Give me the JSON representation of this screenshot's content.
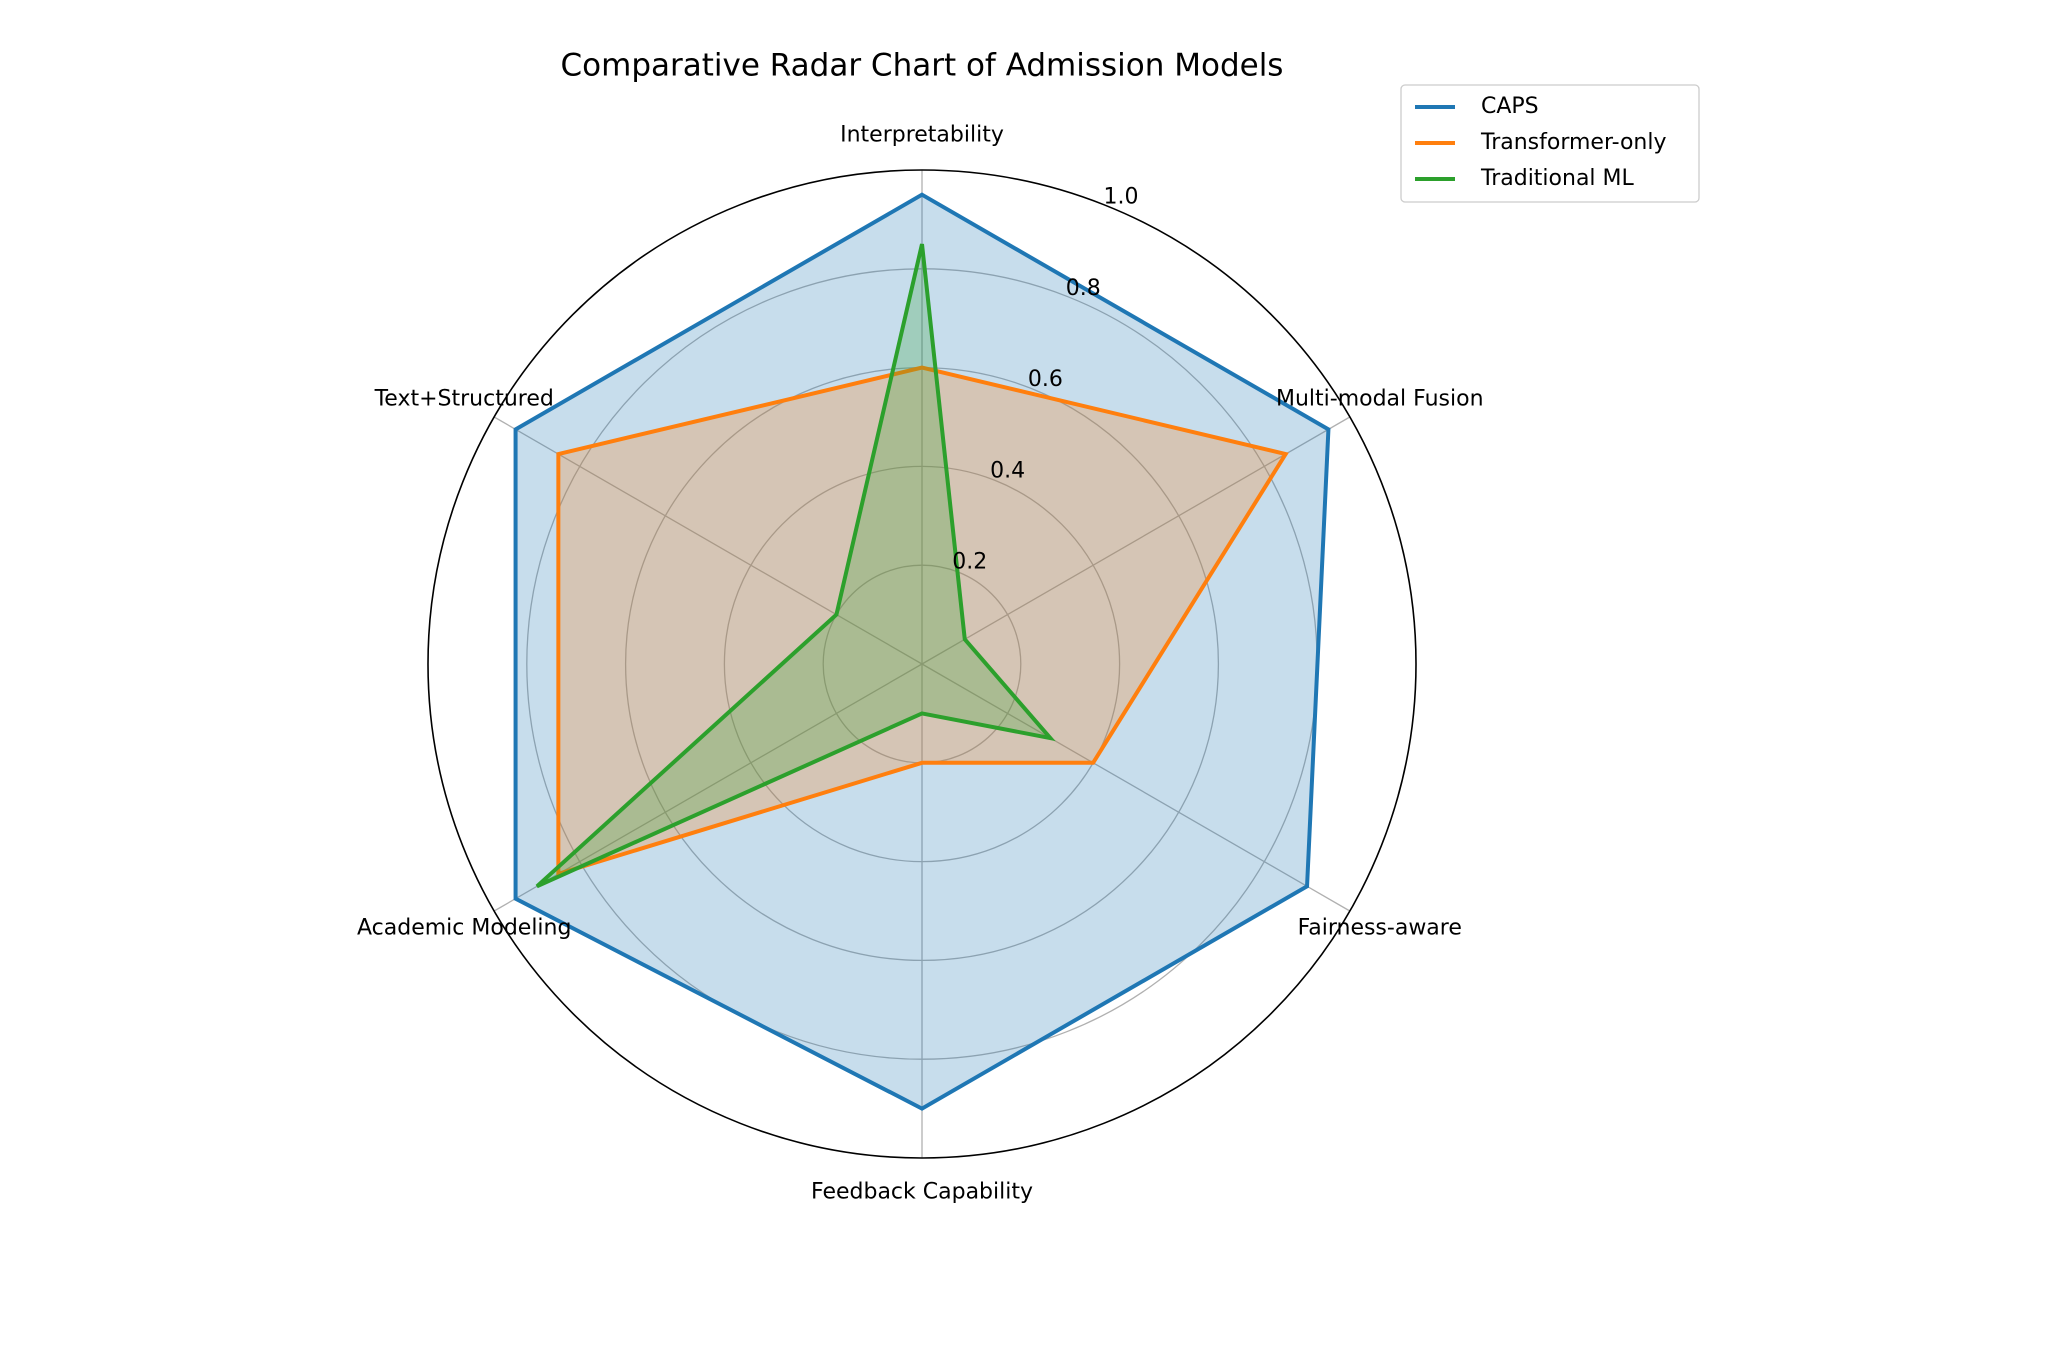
{
  "chart_data": {
    "type": "radar",
    "title": "Comparative Radar Chart of Admission Models",
    "categories": [
      "Interpretability",
      "Multi-modal Fusion",
      "Fairness-aware",
      "Feedback Capability",
      "Academic Modeling",
      "Text+Structured"
    ],
    "series": [
      {
        "name": "CAPS",
        "color": "#1f77b4",
        "values": [
          0.95,
          0.95,
          0.9,
          0.9,
          0.95,
          0.95
        ]
      },
      {
        "name": "Transformer-only",
        "color": "#ff7f0e",
        "values": [
          0.6,
          0.85,
          0.4,
          0.2,
          0.85,
          0.85
        ]
      },
      {
        "name": "Traditional ML",
        "color": "#2ca02c",
        "values": [
          0.85,
          0.1,
          0.3,
          0.1,
          0.9,
          0.2
        ]
      }
    ],
    "rlim": [
      0,
      1
    ],
    "rticks": [
      0.2,
      0.4,
      0.6,
      0.8,
      {
        "value": 1,
        "label": "1.0"
      }
    ],
    "grid": true,
    "legend": "upper right"
  }
}
